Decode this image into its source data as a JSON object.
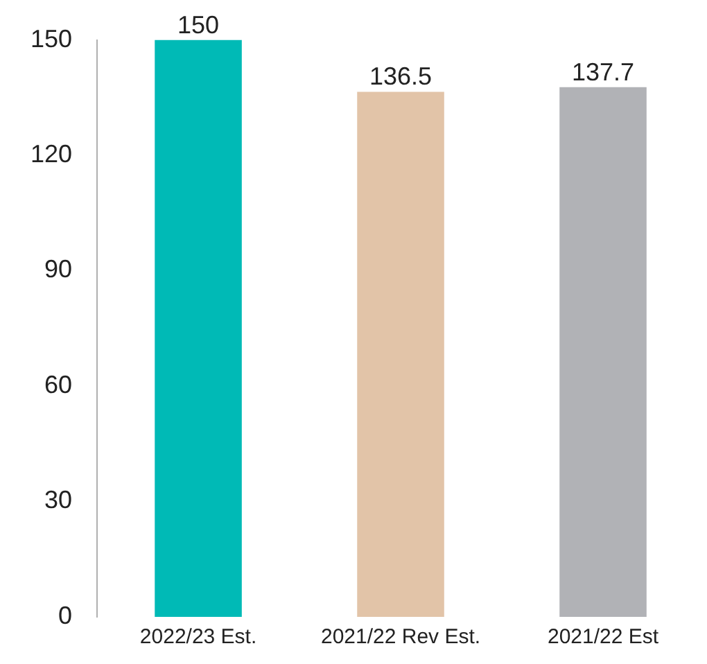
{
  "chart_data": {
    "type": "bar",
    "categories": [
      "2022/23 Est.",
      "2021/22 Rev Est.",
      "2021/22 Est"
    ],
    "values": [
      150,
      136.5,
      137.7
    ],
    "colors": [
      "#00bab6",
      "#e2c4a8",
      "#b1b2b6"
    ],
    "ylim": [
      0,
      150
    ],
    "yticks": [
      0,
      30,
      60,
      90,
      120,
      150
    ],
    "grid": false,
    "legend": false,
    "data_labels": true
  }
}
